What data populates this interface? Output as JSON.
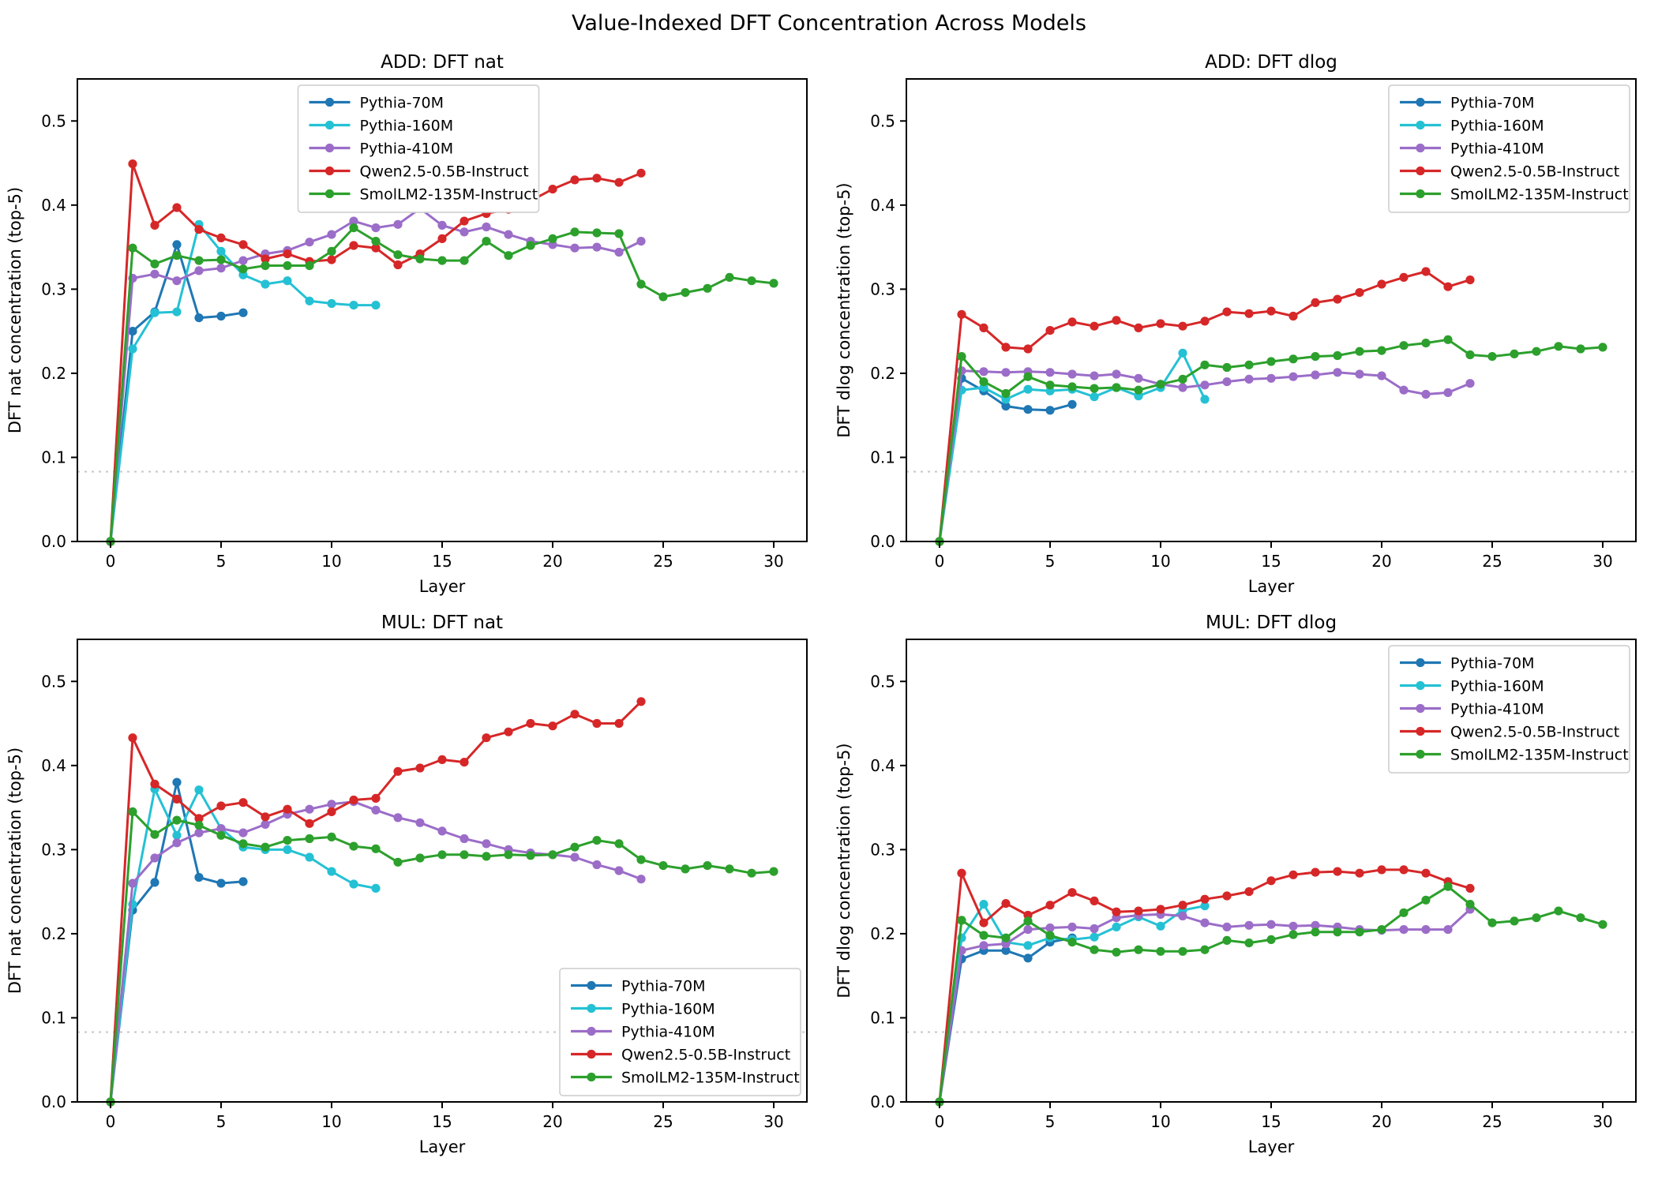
{
  "figure": {
    "title": "Value-Indexed DFT Concentration Across Models",
    "xlabel": "Layer",
    "baseline_value": 0.083,
    "series_colors": {
      "Pythia-70M": "#1f77b4",
      "Pythia-160M": "#24c1d4",
      "Pythia-410M": "#9b6dc8",
      "Qwen2.5-0.5B-Instruct": "#d62728",
      "SmolLM2-135M-Instruct": "#2ca02c"
    },
    "baseline_color": "#c9c9c9",
    "legend_labels": [
      "Pythia-70M",
      "Pythia-160M",
      "Pythia-410M",
      "Qwen2.5-0.5B-Instruct",
      "SmolLM2-135M-Instruct"
    ]
  },
  "chart_data": [
    {
      "type": "line",
      "title": "ADD: DFT nat",
      "xlabel": "Layer",
      "ylabel": "DFT nat concentration (top-5)",
      "xlim": [
        -1.5,
        31.5
      ],
      "ylim": [
        0,
        0.55
      ],
      "xticks": [
        0,
        5,
        10,
        15,
        20,
        25,
        30
      ],
      "yticks": [
        "0.0",
        "0.1",
        "0.2",
        "0.3",
        "0.4",
        "0.5"
      ],
      "baseline": 0.083,
      "grid": false,
      "legend_position": "top-center",
      "series": [
        {
          "name": "Pythia-70M",
          "values": [
            0,
            0.25,
            0.273,
            0.353,
            0.266,
            0.268,
            0.272
          ]
        },
        {
          "name": "Pythia-160M",
          "values": [
            0,
            0.229,
            0.272,
            0.273,
            0.377,
            0.345,
            0.317,
            0.306,
            0.31,
            0.286,
            0.283,
            0.281,
            0.281
          ]
        },
        {
          "name": "Pythia-410M",
          "values": [
            0,
            0.313,
            0.318,
            0.31,
            0.322,
            0.325,
            0.334,
            0.342,
            0.346,
            0.356,
            0.365,
            0.381,
            0.373,
            0.377,
            0.396,
            0.376,
            0.368,
            0.374,
            0.365,
            0.357,
            0.353,
            0.349,
            0.35,
            0.344,
            0.357
          ]
        },
        {
          "name": "Qwen2.5-0.5B-Instruct",
          "values": [
            0,
            0.449,
            0.376,
            0.397,
            0.371,
            0.361,
            0.353,
            0.336,
            0.342,
            0.333,
            0.335,
            0.352,
            0.349,
            0.329,
            0.342,
            0.36,
            0.381,
            0.39,
            0.395,
            0.405,
            0.419,
            0.43,
            0.432,
            0.427,
            0.438
          ]
        },
        {
          "name": "SmolLM2-135M-Instruct",
          "values": [
            0,
            0.349,
            0.33,
            0.34,
            0.334,
            0.335,
            0.324,
            0.328,
            0.328,
            0.328,
            0.345,
            0.373,
            0.357,
            0.341,
            0.336,
            0.334,
            0.334,
            0.357,
            0.34,
            0.352,
            0.36,
            0.368,
            0.367,
            0.366,
            0.306,
            0.291,
            0.296,
            0.301,
            0.314,
            0.31,
            0.307
          ]
        }
      ]
    },
    {
      "type": "line",
      "title": "ADD: DFT dlog",
      "xlabel": "Layer",
      "ylabel": "DFT dlog concentration (top-5)",
      "xlim": [
        -1.5,
        31.5
      ],
      "ylim": [
        0,
        0.55
      ],
      "xticks": [
        0,
        5,
        10,
        15,
        20,
        25,
        30
      ],
      "yticks": [
        "0.0",
        "0.1",
        "0.2",
        "0.3",
        "0.4",
        "0.5"
      ],
      "baseline": 0.083,
      "grid": false,
      "legend_position": "top-right",
      "series": [
        {
          "name": "Pythia-70M",
          "values": [
            0,
            0.194,
            0.179,
            0.161,
            0.157,
            0.156,
            0.163
          ]
        },
        {
          "name": "Pythia-160M",
          "values": [
            0,
            0.18,
            0.183,
            0.169,
            0.181,
            0.179,
            0.181,
            0.172,
            0.183,
            0.173,
            0.183,
            0.224,
            0.169
          ]
        },
        {
          "name": "Pythia-410M",
          "values": [
            0,
            0.203,
            0.202,
            0.201,
            0.202,
            0.201,
            0.199,
            0.197,
            0.199,
            0.194,
            0.187,
            0.183,
            0.186,
            0.19,
            0.193,
            0.194,
            0.196,
            0.198,
            0.201,
            0.199,
            0.197,
            0.18,
            0.175,
            0.177,
            0.188
          ]
        },
        {
          "name": "Qwen2.5-0.5B-Instruct",
          "values": [
            0,
            0.27,
            0.254,
            0.231,
            0.229,
            0.251,
            0.261,
            0.256,
            0.263,
            0.254,
            0.259,
            0.256,
            0.262,
            0.273,
            0.271,
            0.274,
            0.268,
            0.284,
            0.288,
            0.296,
            0.306,
            0.314,
            0.321,
            0.303,
            0.311
          ]
        },
        {
          "name": "SmolLM2-135M-Instruct",
          "values": [
            0,
            0.22,
            0.19,
            0.176,
            0.196,
            0.186,
            0.184,
            0.182,
            0.183,
            0.18,
            0.187,
            0.193,
            0.21,
            0.207,
            0.21,
            0.214,
            0.217,
            0.22,
            0.221,
            0.226,
            0.227,
            0.233,
            0.236,
            0.24,
            0.222,
            0.22,
            0.223,
            0.226,
            0.232,
            0.229,
            0.231
          ]
        }
      ]
    },
    {
      "type": "line",
      "title": "MUL: DFT nat",
      "xlabel": "Layer",
      "ylabel": "DFT nat concentration (top-5)",
      "xlim": [
        -1.5,
        31.5
      ],
      "ylim": [
        0,
        0.55
      ],
      "xticks": [
        0,
        5,
        10,
        15,
        20,
        25,
        30
      ],
      "yticks": [
        "0.0",
        "0.1",
        "0.2",
        "0.3",
        "0.4",
        "0.5"
      ],
      "baseline": 0.083,
      "grid": false,
      "legend_position": "bottom-right",
      "series": [
        {
          "name": "Pythia-70M",
          "values": [
            0,
            0.228,
            0.261,
            0.38,
            0.267,
            0.26,
            0.262
          ]
        },
        {
          "name": "Pythia-160M",
          "values": [
            0,
            0.235,
            0.372,
            0.317,
            0.371,
            0.325,
            0.303,
            0.3,
            0.3,
            0.291,
            0.274,
            0.259,
            0.254
          ]
        },
        {
          "name": "Pythia-410M",
          "values": [
            0,
            0.26,
            0.29,
            0.308,
            0.32,
            0.325,
            0.32,
            0.33,
            0.342,
            0.348,
            0.354,
            0.357,
            0.347,
            0.338,
            0.332,
            0.322,
            0.313,
            0.307,
            0.3,
            0.296,
            0.294,
            0.291,
            0.282,
            0.275,
            0.265
          ]
        },
        {
          "name": "Qwen2.5-0.5B-Instruct",
          "values": [
            0,
            0.433,
            0.378,
            0.36,
            0.337,
            0.352,
            0.356,
            0.339,
            0.348,
            0.331,
            0.345,
            0.359,
            0.361,
            0.393,
            0.397,
            0.407,
            0.404,
            0.433,
            0.44,
            0.45,
            0.447,
            0.461,
            0.45,
            0.45,
            0.476
          ]
        },
        {
          "name": "SmolLM2-135M-Instruct",
          "values": [
            0,
            0.345,
            0.318,
            0.335,
            0.329,
            0.317,
            0.307,
            0.303,
            0.311,
            0.313,
            0.315,
            0.304,
            0.301,
            0.285,
            0.29,
            0.294,
            0.294,
            0.292,
            0.294,
            0.293,
            0.294,
            0.303,
            0.311,
            0.307,
            0.288,
            0.281,
            0.277,
            0.281,
            0.277,
            0.272,
            0.274
          ]
        }
      ]
    },
    {
      "type": "line",
      "title": "MUL: DFT dlog",
      "xlabel": "Layer",
      "ylabel": "DFT dlog concentration (top-5)",
      "xlim": [
        -1.5,
        31.5
      ],
      "ylim": [
        0,
        0.55
      ],
      "xticks": [
        0,
        5,
        10,
        15,
        20,
        25,
        30
      ],
      "yticks": [
        "0.0",
        "0.1",
        "0.2",
        "0.3",
        "0.4",
        "0.5"
      ],
      "baseline": 0.083,
      "grid": false,
      "legend_position": "top-right",
      "series": [
        {
          "name": "Pythia-70M",
          "values": [
            0,
            0.17,
            0.18,
            0.18,
            0.171,
            0.19,
            0.195
          ]
        },
        {
          "name": "Pythia-160M",
          "values": [
            0,
            0.195,
            0.235,
            0.19,
            0.186,
            0.195,
            0.193,
            0.196,
            0.208,
            0.22,
            0.209,
            0.228,
            0.233
          ]
        },
        {
          "name": "Pythia-410M",
          "values": [
            0,
            0.18,
            0.186,
            0.188,
            0.205,
            0.207,
            0.208,
            0.206,
            0.219,
            0.222,
            0.223,
            0.221,
            0.213,
            0.208,
            0.21,
            0.211,
            0.209,
            0.21,
            0.208,
            0.205,
            0.204,
            0.205,
            0.205,
            0.205,
            0.229
          ]
        },
        {
          "name": "Qwen2.5-0.5B-Instruct",
          "values": [
            0,
            0.272,
            0.213,
            0.236,
            0.222,
            0.234,
            0.249,
            0.239,
            0.226,
            0.227,
            0.229,
            0.234,
            0.241,
            0.245,
            0.25,
            0.263,
            0.27,
            0.273,
            0.274,
            0.272,
            0.276,
            0.276,
            0.272,
            0.262,
            0.254
          ]
        },
        {
          "name": "SmolLM2-135M-Instruct",
          "values": [
            0,
            0.216,
            0.198,
            0.195,
            0.215,
            0.198,
            0.19,
            0.181,
            0.178,
            0.181,
            0.179,
            0.179,
            0.181,
            0.192,
            0.189,
            0.193,
            0.199,
            0.202,
            0.202,
            0.202,
            0.205,
            0.225,
            0.24,
            0.256,
            0.235,
            0.213,
            0.215,
            0.219,
            0.227,
            0.219,
            0.211
          ]
        }
      ]
    }
  ]
}
